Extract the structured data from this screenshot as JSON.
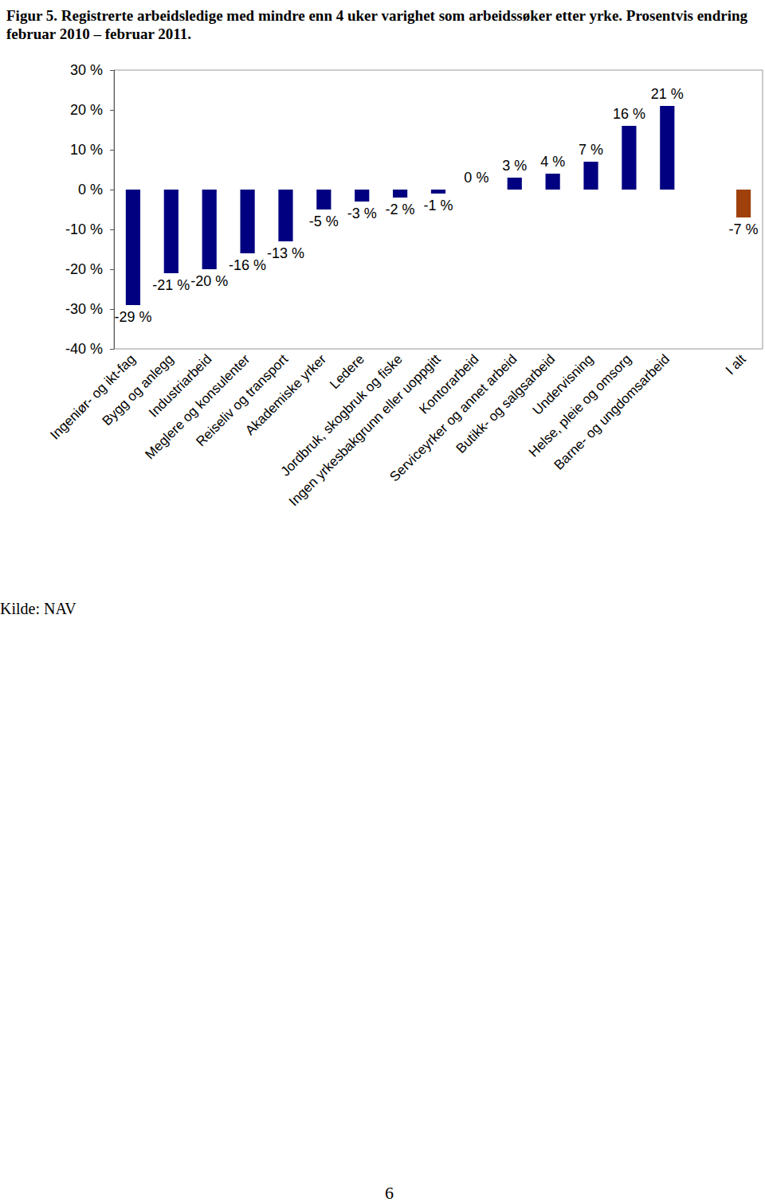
{
  "chart_data": {
    "type": "bar",
    "title": "Figur 5. Registrerte arbeidsledige med mindre enn 4 uker varighet som arbeidssøker etter yrke. Prosentvis endring februar 2010 – februar 2011.",
    "source": "Kilde: NAV",
    "page_number": "6",
    "categories": [
      "Ingeniør- og ikt-fag",
      "Bygg og anlegg",
      "Industriarbeid",
      "Meglere og konsulenter",
      "Reiseliv og transport",
      "Akademiske yrker",
      "Ledere",
      "Jordbruk, skogbruk og fiske",
      "Ingen yrkesbakgrunn eller uoppgitt",
      "Kontorarbeid",
      "Serviceyrker og annet arbeid",
      "Butikk- og salgsarbeid",
      "Undervisning",
      "Helse, pleie og omsorg",
      "Barne- og ungdomsarbeid",
      null,
      "I alt"
    ],
    "values": [
      -29,
      -21,
      -20,
      -16,
      -13,
      -5,
      -3,
      -2,
      -1,
      0,
      3,
      4,
      7,
      16,
      21,
      null,
      -7
    ],
    "value_labels": [
      "-29 %",
      "-21 %",
      "-20 %",
      "-16 %",
      "-13 %",
      "-5 %",
      "-3 %",
      "-2 %",
      "-1 %",
      "0 %",
      "3 %",
      "4 %",
      "7 %",
      "16 %",
      "21 %",
      null,
      "-7 %"
    ],
    "colors": [
      "#000080",
      "#000080",
      "#000080",
      "#000080",
      "#000080",
      "#000080",
      "#000080",
      "#000080",
      "#000080",
      "#000080",
      "#000080",
      "#000080",
      "#000080",
      "#000080",
      "#000080",
      "#000080",
      "#a0410d"
    ],
    "ylim": [
      -40,
      30
    ],
    "yticks": [
      {
        "value": -40,
        "label": "-40 %"
      },
      {
        "value": -30,
        "label": "-30 %"
      },
      {
        "value": -20,
        "label": "-20 %"
      },
      {
        "value": -10,
        "label": "-10 %"
      },
      {
        "value": 0,
        "label": "0 %"
      },
      {
        "value": 10,
        "label": "10 %"
      },
      {
        "value": 20,
        "label": "20 %"
      },
      {
        "value": 30,
        "label": "30 %"
      }
    ],
    "grid": false,
    "data_labels": true
  }
}
